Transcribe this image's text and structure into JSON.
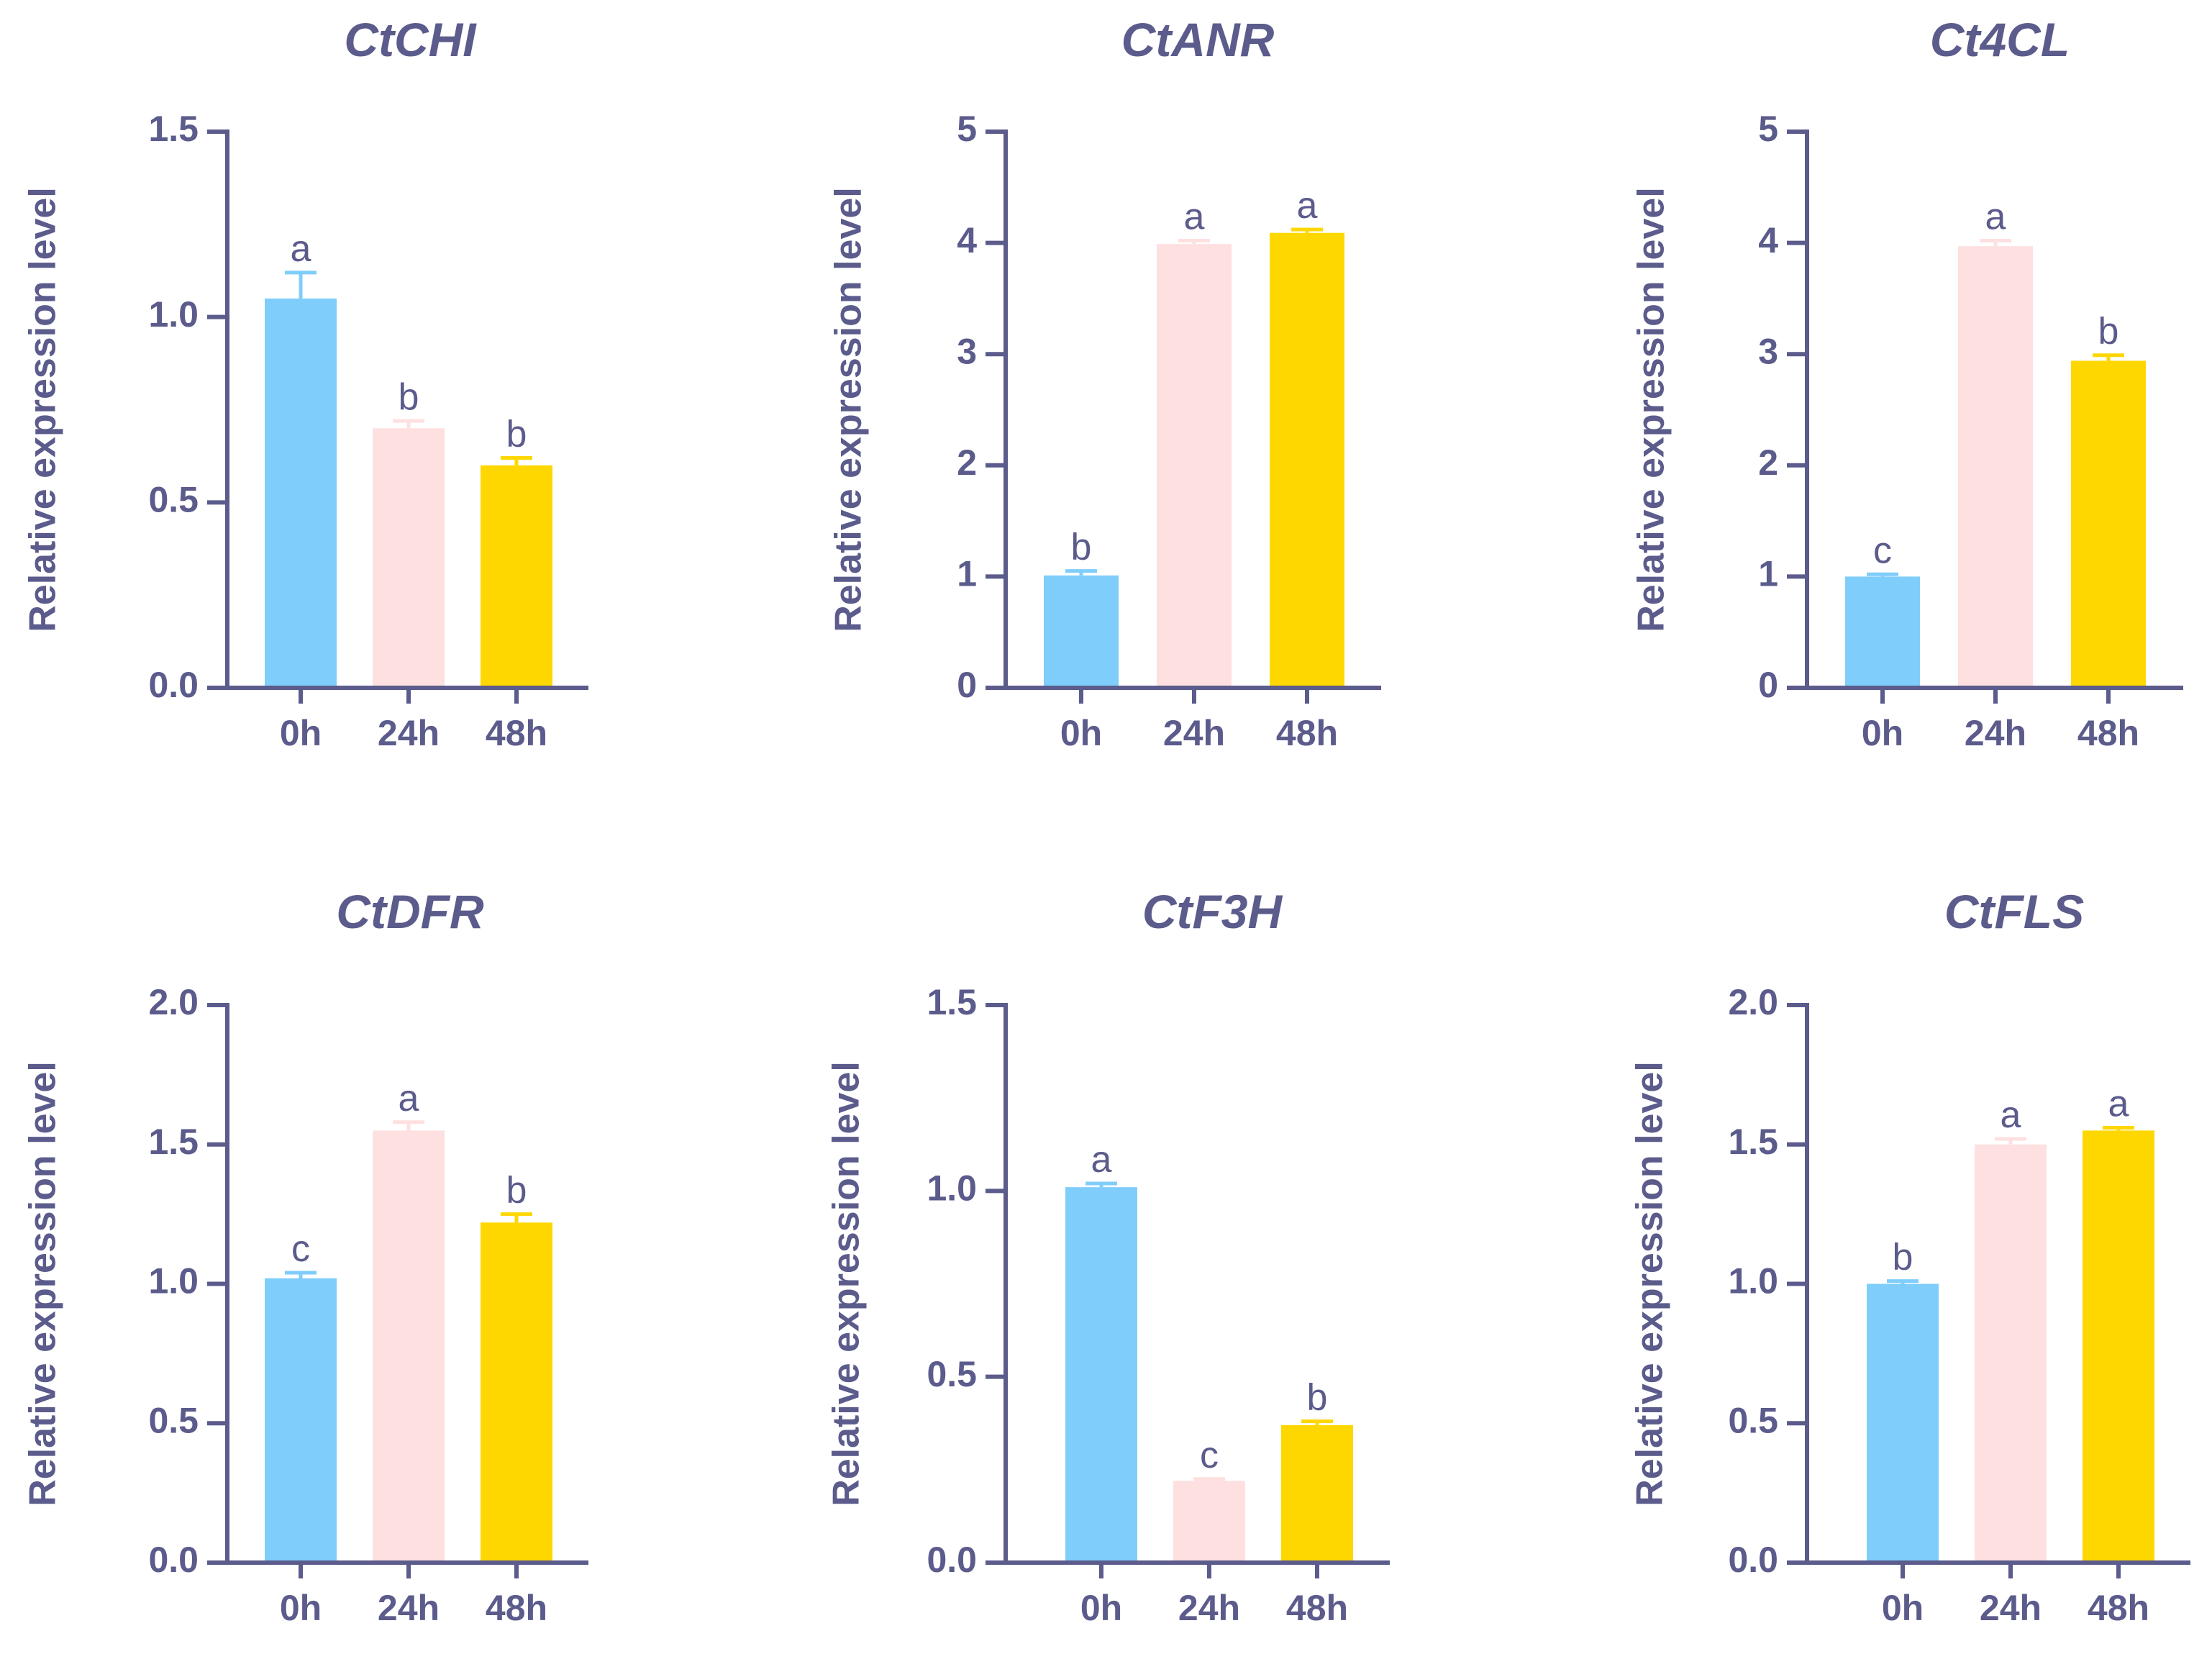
{
  "colors": {
    "axis": "#5b5b8c",
    "text": "#5b5b8c",
    "bars": [
      "#7fcdfb",
      "#fee0e1",
      "#fed700"
    ]
  },
  "chart_data": [
    {
      "type": "bar",
      "title": "CtCHI",
      "ylabel": "Relative expression level",
      "categories": [
        "0h",
        "24h",
        "48h"
      ],
      "values": [
        1.05,
        0.7,
        0.6
      ],
      "errors": [
        0.07,
        0.02,
        0.02
      ],
      "significance": [
        "a",
        "b",
        "b"
      ],
      "ylim": [
        0,
        1.5
      ],
      "yticks": [
        0,
        0.5,
        1.0,
        1.5
      ],
      "ytick_labels": [
        "0.0",
        "0.5",
        "1.0",
        "1.5"
      ]
    },
    {
      "type": "bar",
      "title": "CtANR",
      "ylabel": "Relative expression level",
      "categories": [
        "0h",
        "24h",
        "48h"
      ],
      "values": [
        1.01,
        3.99,
        4.09
      ],
      "errors": [
        0.04,
        0.03,
        0.03
      ],
      "significance": [
        "b",
        "a",
        "a"
      ],
      "ylim": [
        0,
        5
      ],
      "yticks": [
        0,
        1,
        2,
        3,
        4,
        5
      ],
      "ytick_labels": [
        "0",
        "1",
        "2",
        "3",
        "4",
        "5"
      ]
    },
    {
      "type": "bar",
      "title": "Ct4CL",
      "ylabel": "Relative expression level",
      "categories": [
        "0h",
        "24h",
        "48h"
      ],
      "values": [
        1.0,
        3.97,
        2.94
      ],
      "errors": [
        0.02,
        0.05,
        0.05
      ],
      "significance": [
        "c",
        "a",
        "b"
      ],
      "ylim": [
        0,
        5
      ],
      "yticks": [
        0,
        1,
        2,
        3,
        4,
        5
      ],
      "ytick_labels": [
        "0",
        "1",
        "2",
        "3",
        "4",
        "5"
      ]
    },
    {
      "type": "bar",
      "title": "CtDFR",
      "ylabel": "Relative expression level",
      "categories": [
        "0h",
        "24h",
        "48h"
      ],
      "values": [
        1.02,
        1.55,
        1.22
      ],
      "errors": [
        0.02,
        0.03,
        0.03
      ],
      "significance": [
        "c",
        "a",
        "b"
      ],
      "ylim": [
        0,
        2.0
      ],
      "yticks": [
        0,
        0.5,
        1.0,
        1.5,
        2.0
      ],
      "ytick_labels": [
        "0.0",
        "0.5",
        "1.0",
        "1.5",
        "2.0"
      ]
    },
    {
      "type": "bar",
      "title": "CtF3H",
      "ylabel": "Relative expression level",
      "categories": [
        "0h",
        "24h",
        "48h"
      ],
      "values": [
        1.01,
        0.22,
        0.37
      ],
      "errors": [
        0.01,
        0.005,
        0.01
      ],
      "significance": [
        "a",
        "c",
        "b"
      ],
      "ylim": [
        0,
        1.5
      ],
      "yticks": [
        0,
        0.5,
        1.0,
        1.5
      ],
      "ytick_labels": [
        "0.0",
        "0.5",
        "1.0",
        "1.5"
      ]
    },
    {
      "type": "bar",
      "title": "CtFLS",
      "ylabel": "Relative expression level",
      "categories": [
        "0h",
        "24h",
        "48h"
      ],
      "values": [
        1.0,
        1.5,
        1.55
      ],
      "errors": [
        0.01,
        0.02,
        0.01
      ],
      "significance": [
        "b",
        "a",
        "a"
      ],
      "ylim": [
        0,
        2.0
      ],
      "yticks": [
        0,
        0.5,
        1.0,
        1.5,
        2.0
      ],
      "ytick_labels": [
        "0.0",
        "0.5",
        "1.0",
        "1.5",
        "2.0"
      ]
    }
  ]
}
